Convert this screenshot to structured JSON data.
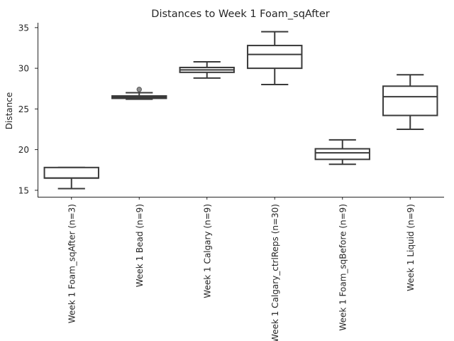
{
  "chart_data": {
    "type": "box",
    "title": "Distances to Week 1 Foam_sqAfter",
    "xlabel": "",
    "ylabel": "Distance",
    "ylim": [
      14.2,
      35.6
    ],
    "yticks": [
      15,
      20,
      25,
      30,
      35
    ],
    "grid": false,
    "categories": [
      "Week 1 Foam_sqAfter (n=3)",
      "Week 1 Bead (n=9)",
      "Week 1 Calgary (n=9)",
      "Week 1 Calgary_ctrlReps (n=30)",
      "Week 1 Foam_sqBefore (n=9)",
      "Week 1 Liquid (n=9)"
    ],
    "boxes": [
      {
        "whislo": 15.2,
        "q1": 16.5,
        "med": 16.5,
        "q3": 17.8,
        "whishi": 17.8,
        "fliers": []
      },
      {
        "whislo": 26.2,
        "q1": 26.3,
        "med": 26.45,
        "q3": 26.6,
        "whishi": 27.0,
        "fliers": [
          27.4
        ]
      },
      {
        "whislo": 28.8,
        "q1": 29.5,
        "med": 29.8,
        "q3": 30.1,
        "whishi": 30.8,
        "fliers": []
      },
      {
        "whislo": 28.0,
        "q1": 30.0,
        "med": 31.7,
        "q3": 32.8,
        "whishi": 34.5,
        "fliers": []
      },
      {
        "whislo": 18.2,
        "q1": 18.8,
        "med": 19.6,
        "q3": 20.1,
        "whishi": 21.2,
        "fliers": []
      },
      {
        "whislo": 22.5,
        "q1": 24.2,
        "med": 26.5,
        "q3": 27.8,
        "whishi": 29.2,
        "fliers": []
      }
    ]
  }
}
